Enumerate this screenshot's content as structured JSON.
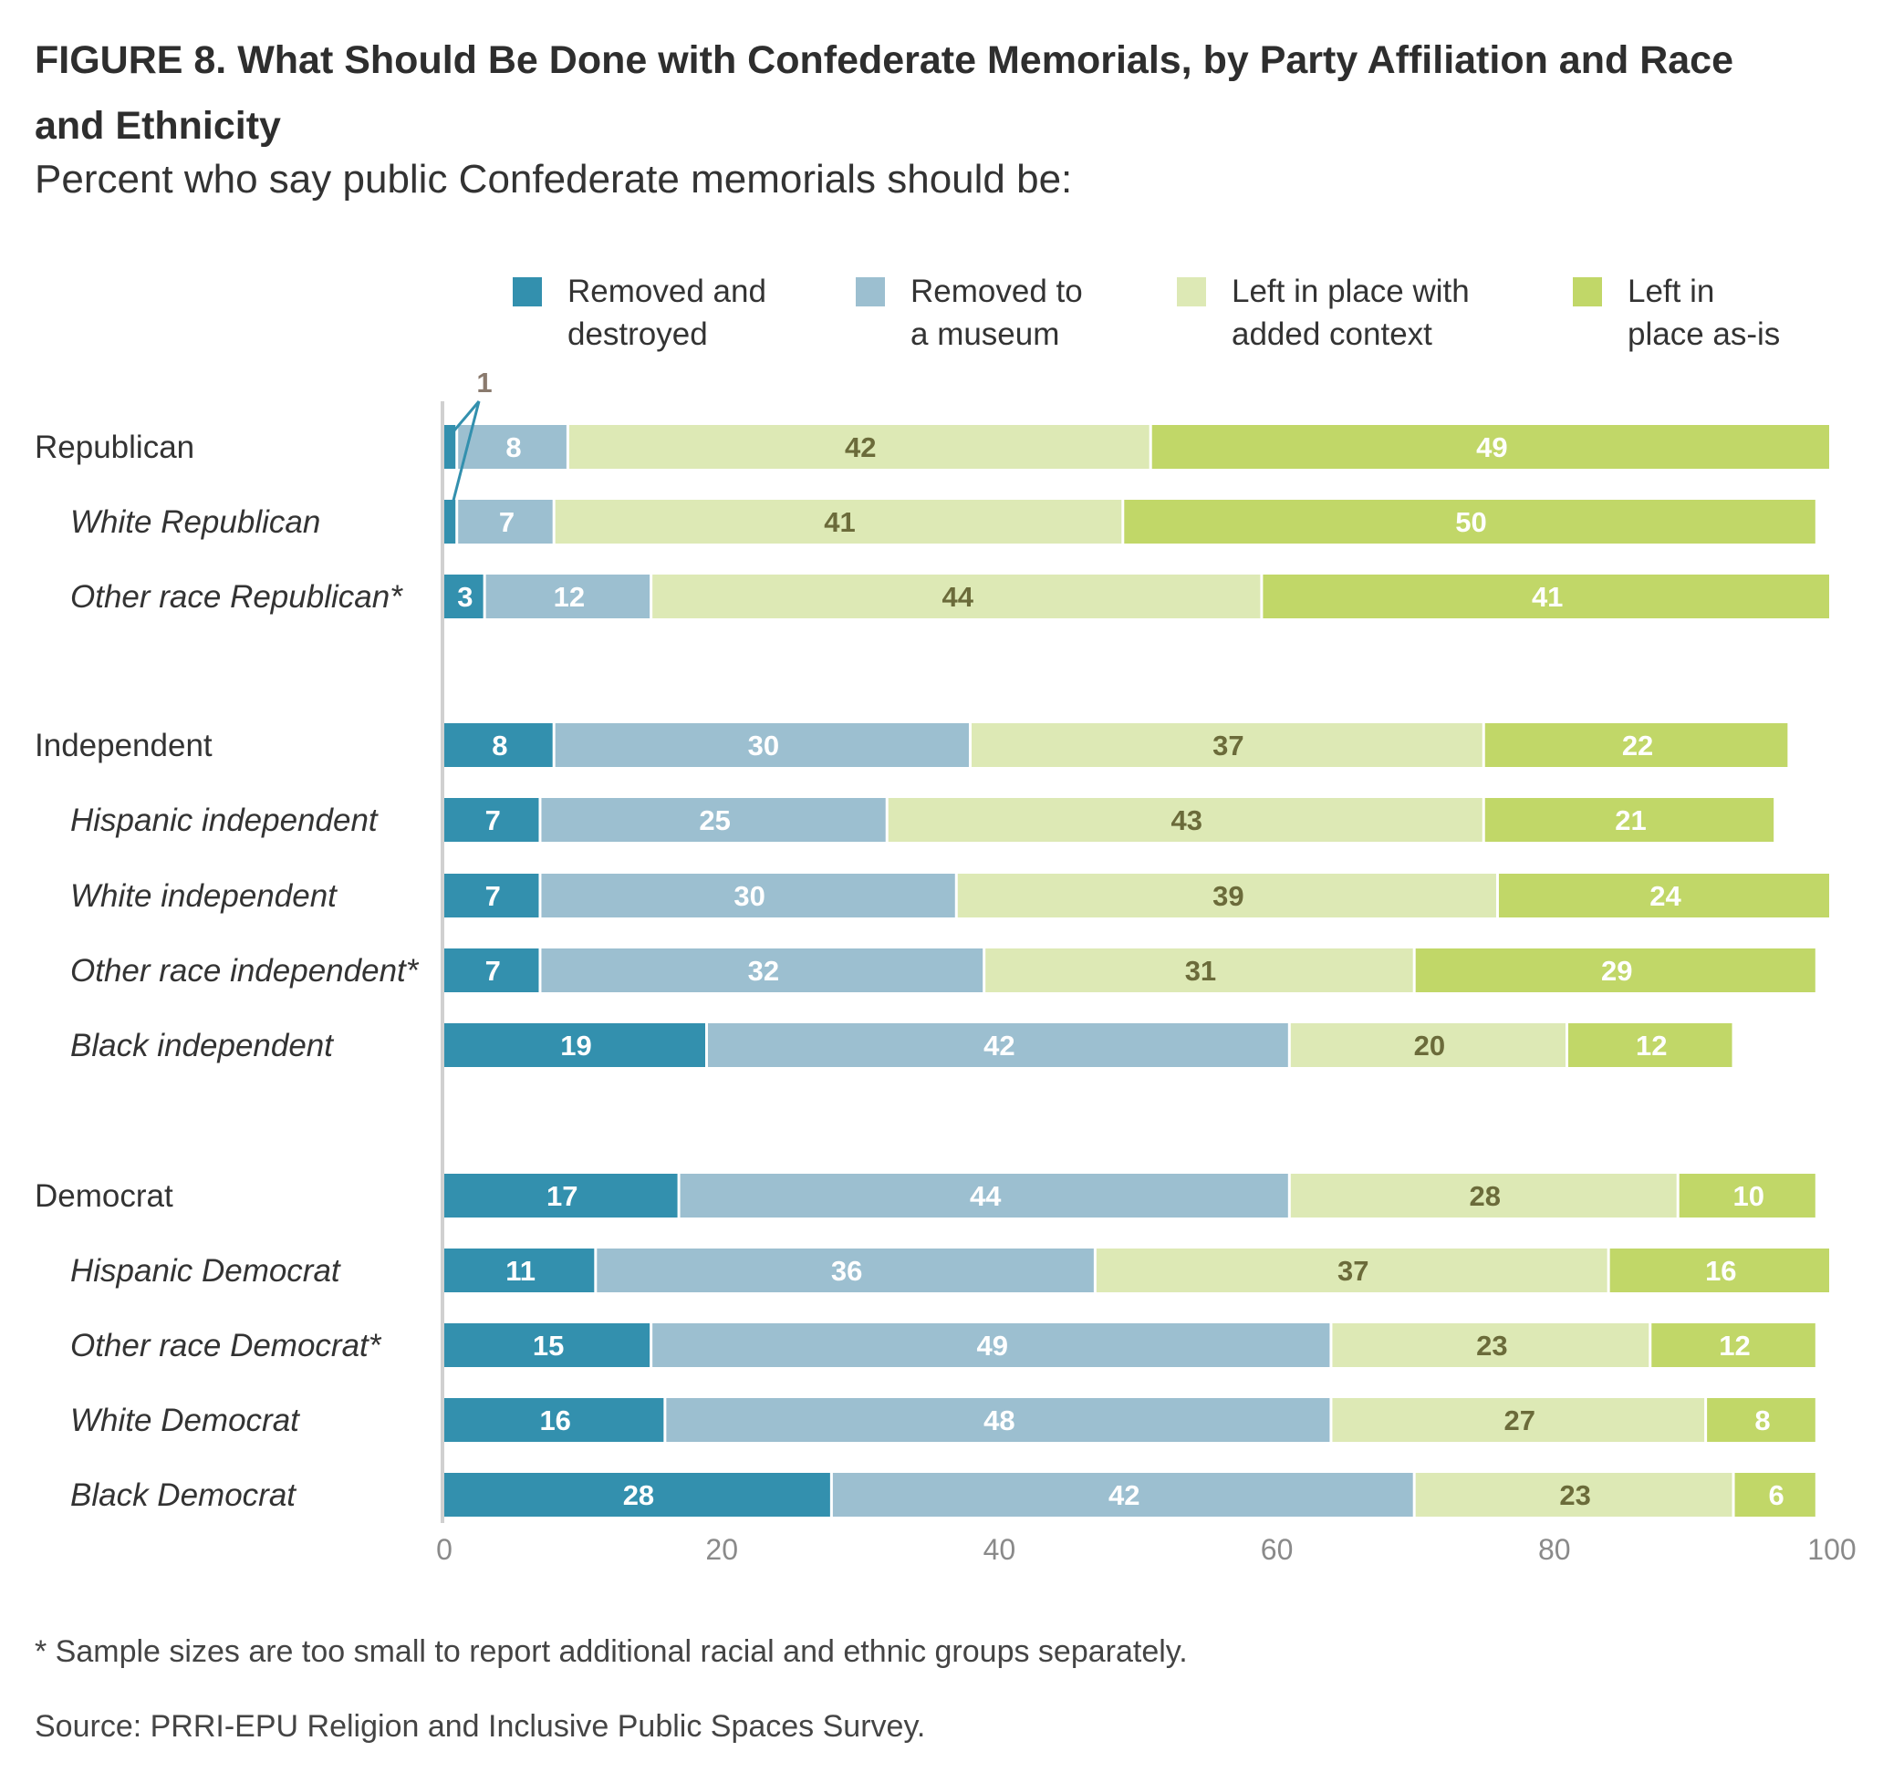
{
  "title": "FIGURE 8.  What Should Be Done with Confederate Memorials, by Party Affiliation and Race and Ethnicity",
  "subtitle": "Percent who say public Confederate memorials should be:",
  "footnote": "* Sample sizes are too small to report additional racial and ethnic groups separately.",
  "source": "Source: PRRI-EPU Religion and Inclusive Public Spaces Survey.",
  "legend": [
    {
      "line1": "Removed and",
      "line2": "destroyed",
      "color": "#3390ae"
    },
    {
      "line1": "Removed to",
      "line2": "a museum",
      "color": "#9cbfd0"
    },
    {
      "line1": "Left in place with",
      "line2": "added context",
      "color": "#dde9b5"
    },
    {
      "line1": "Left in",
      "line2": "place as-is",
      "color": "#c1d768"
    }
  ],
  "chart_data": {
    "type": "bar",
    "orientation": "horizontal",
    "stacked": true,
    "xlim": [
      0,
      100
    ],
    "xticks": [
      0,
      20,
      40,
      60,
      80,
      100
    ],
    "callout": "1",
    "categories": [
      "Republican",
      "White Republican",
      "Other race Republican*",
      "Independent",
      "Hispanic independent",
      "White independent",
      "Other race independent*",
      "Black independent",
      "Democrat",
      "Hispanic Democrat",
      "Other race Democrat*",
      "White Democrat",
      "Black Democrat"
    ],
    "subgroup": [
      false,
      true,
      true,
      false,
      true,
      true,
      true,
      true,
      false,
      true,
      true,
      true,
      true
    ],
    "series": [
      {
        "name": "Removed and destroyed",
        "color": "#3390ae",
        "label_color": "#ffffff",
        "values": [
          1,
          1,
          3,
          8,
          7,
          7,
          7,
          19,
          17,
          11,
          15,
          16,
          28
        ]
      },
      {
        "name": "Removed to a museum",
        "color": "#9cbfd0",
        "label_color": "#ffffff",
        "values": [
          8,
          7,
          12,
          30,
          25,
          30,
          32,
          42,
          44,
          36,
          49,
          48,
          42
        ]
      },
      {
        "name": "Left in place with added context",
        "color": "#dde9b5",
        "label_color": "#6b6b3a",
        "values": [
          42,
          41,
          44,
          37,
          43,
          39,
          31,
          20,
          28,
          37,
          23,
          27,
          23
        ]
      },
      {
        "name": "Left in place as-is",
        "color": "#c1d768",
        "label_color": "#ffffff",
        "values": [
          49,
          50,
          41,
          22,
          21,
          24,
          29,
          12,
          10,
          16,
          12,
          8,
          6
        ]
      }
    ]
  }
}
